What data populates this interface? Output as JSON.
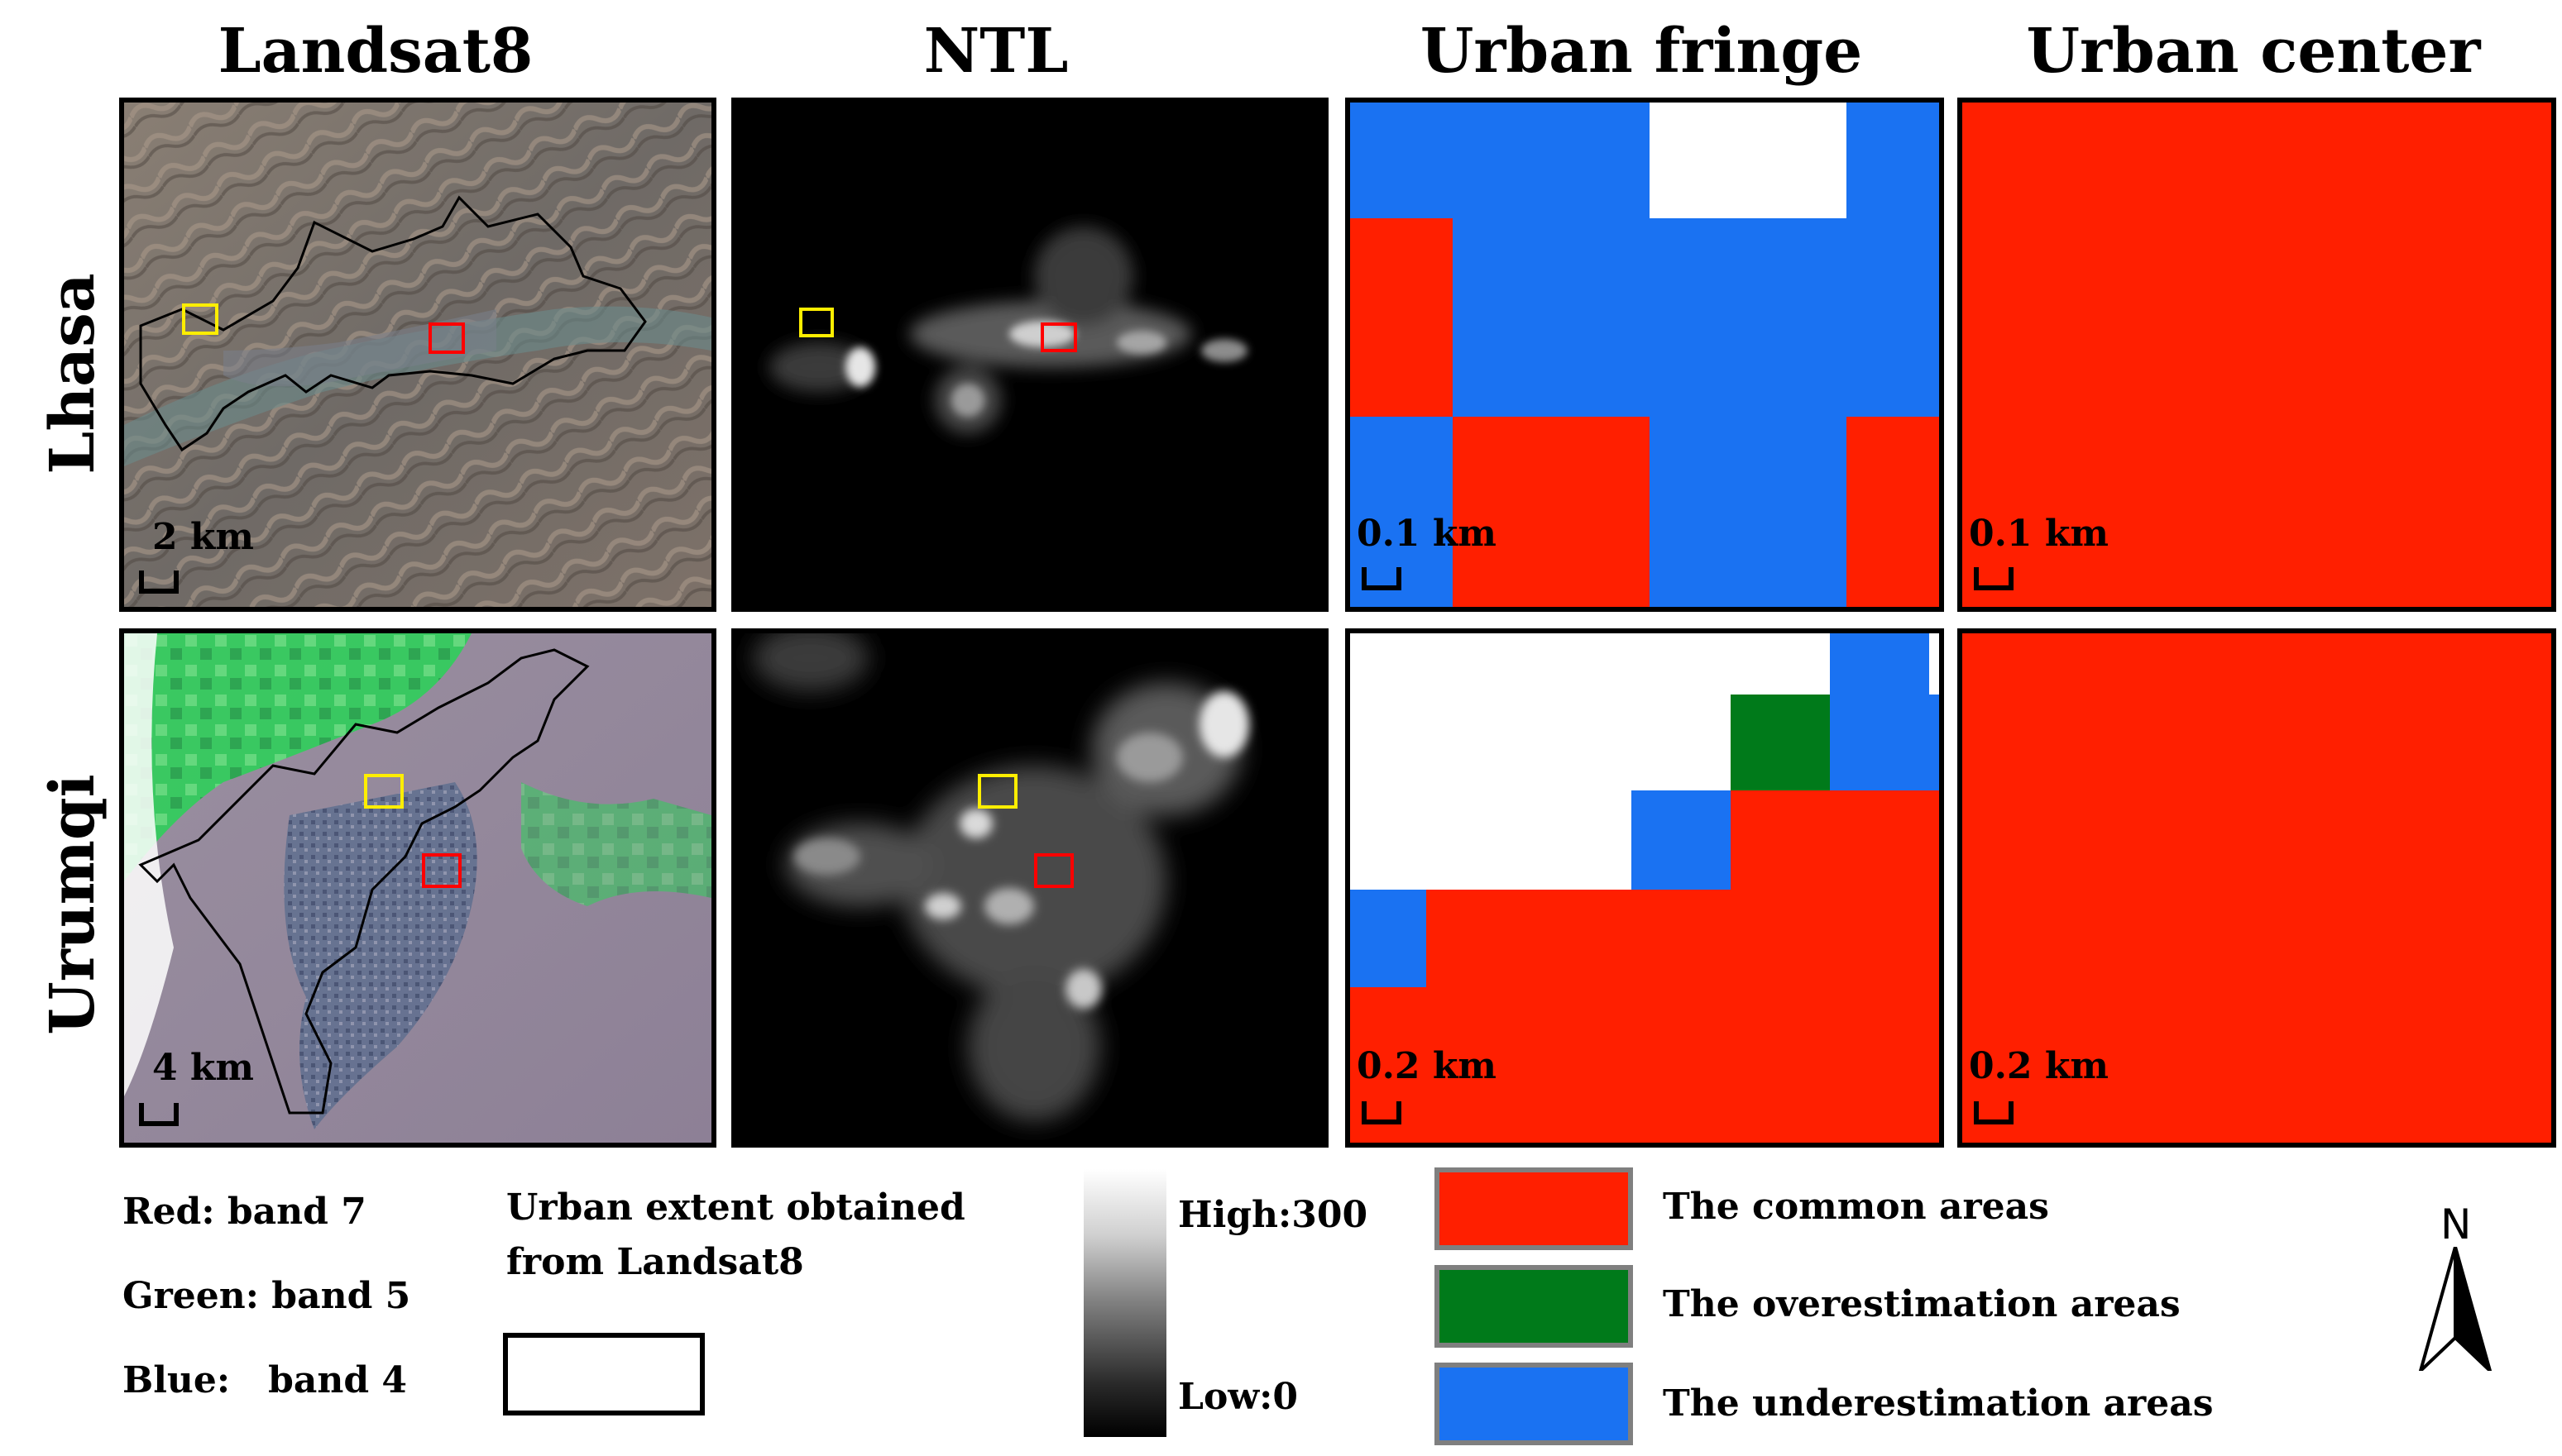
{
  "columns": {
    "landsat": "Landsat8",
    "ntl": "NTL",
    "fringe": "Urban fringe",
    "center": "Urban center"
  },
  "rows": {
    "lhasa": {
      "label": "Lhasa",
      "landsat_scale": "2 km",
      "fringe_scale": "0.1 km",
      "center_scale": "0.1 km"
    },
    "urumqi": {
      "label": "Urumqi",
      "landsat_scale": "4 km",
      "fringe_scale": "0.2 km",
      "center_scale": "0.2 km"
    }
  },
  "legend": {
    "bands": {
      "red": "Red: band 7",
      "green": "Green: band 5",
      "blue": "Blue:   band 4"
    },
    "urban_extent": "Urban extent obtained\nfrom Landsat8",
    "ntl_high": "High:300",
    "ntl_low": "Low:0",
    "common": "The common areas",
    "over": "The overestimation areas",
    "under": "The underestimation areas",
    "north": "N"
  },
  "colors": {
    "common": "#ff1f00",
    "over": "#007a1a",
    "under": "#1a72f2",
    "sample_fringe_box": "#ffee00",
    "sample_center_box": "#ff0000"
  }
}
